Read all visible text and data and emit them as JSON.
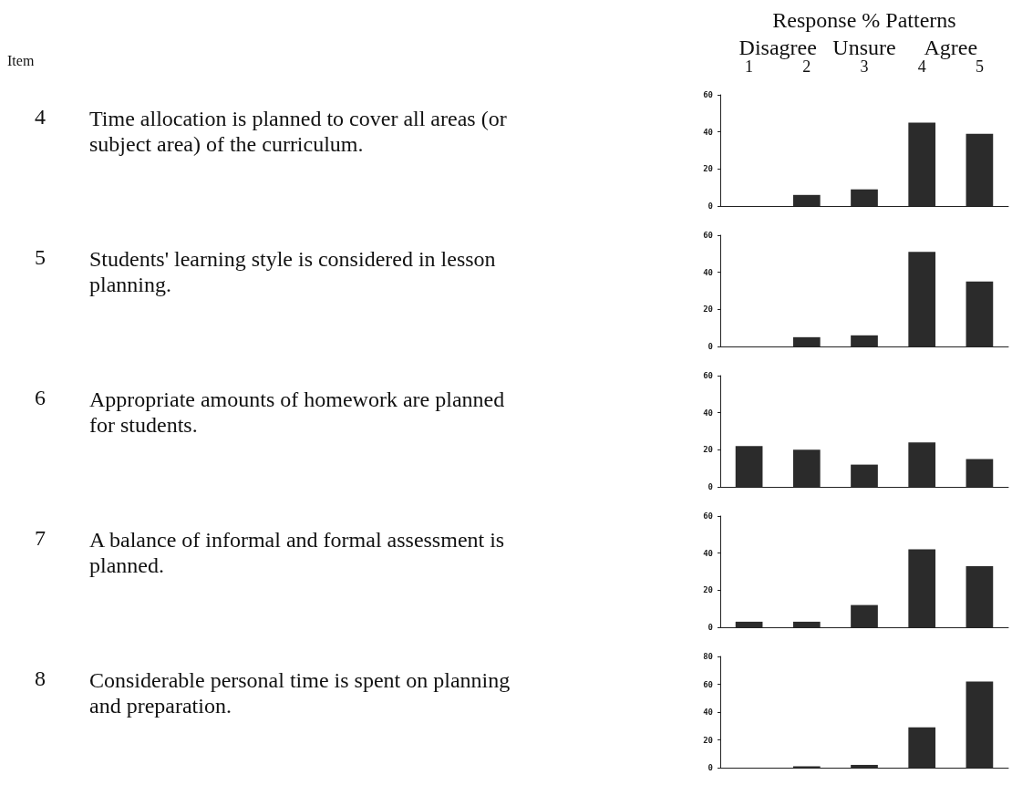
{
  "chart_data": [
    {
      "type": "bar",
      "annotations": [
        "4",
        "Time allocation is planned to cover all areas (or subject area) of the curriculum.",
        "Item",
        "Response % Patterns",
        "Disagree",
        "Unsure",
        "Agree"
      ],
      "categories": [
        "1",
        "2",
        "3",
        "4",
        "5"
      ],
      "values": [
        0,
        6,
        9,
        45,
        39
      ],
      "color": "#2b2b2b",
      "ylim": [
        0,
        60
      ],
      "yticks": [
        0,
        20,
        40,
        60
      ]
    },
    {
      "type": "bar",
      "annotations": [
        "5",
        "Students' learning style is considered in lesson planning."
      ],
      "categories": [
        "1",
        "2",
        "3",
        "4",
        "5"
      ],
      "values": [
        0,
        5,
        6,
        51,
        35
      ],
      "color": "#2b2b2b",
      "ylim": [
        0,
        60
      ],
      "yticks": [
        0,
        20,
        40,
        60
      ],
      "tick_labels": "y"
    },
    {
      "type": "bar",
      "annotations": [
        "6",
        "Appropriate amounts of homework are planned for students."
      ],
      "categories": [
        "1",
        "2",
        "3",
        "4",
        "5"
      ],
      "values": [
        22,
        20,
        12,
        24,
        15
      ],
      "color": "#2b2b2b",
      "ylim": [
        0,
        60
      ],
      "yticks": [
        0,
        20,
        40,
        60
      ],
      "tick_labels": "y"
    },
    {
      "type": "bar",
      "annotations": [
        "7",
        "A balance of informal and formal assessment is planned."
      ],
      "categories": [
        "1",
        "2",
        "3",
        "4",
        "5"
      ],
      "values": [
        3,
        3,
        12,
        42,
        33
      ],
      "color": "#2b2b2b",
      "ylim": [
        0,
        60
      ],
      "yticks": [
        0,
        20,
        40,
        60
      ],
      "tick_labels": "y"
    },
    {
      "type": "bar",
      "annotations": [
        "8",
        "Considerable personal time is spent on planning and preparation."
      ],
      "categories": [
        "1",
        "2",
        "3",
        "4",
        "5"
      ],
      "values": [
        0,
        1,
        2,
        29,
        62
      ],
      "color": "#2b2b2b",
      "ylim": [
        0,
        80
      ],
      "yticks": [
        0,
        20,
        40,
        60,
        80
      ],
      "tick_labels": "y"
    }
  ]
}
